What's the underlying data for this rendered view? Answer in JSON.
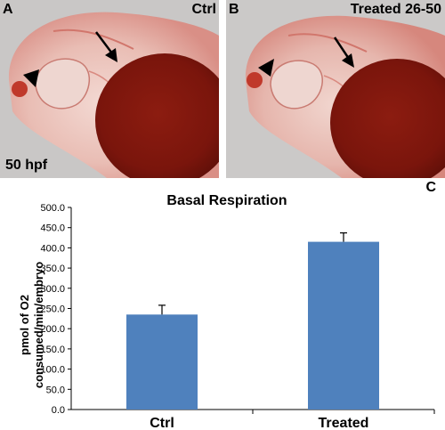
{
  "panels": [
    {
      "letter": "A",
      "condition": "Ctrl",
      "stage": "50 hpf"
    },
    {
      "letter": "B",
      "condition": "Treated 26-50"
    }
  ],
  "chart_letter": "C",
  "chart_data": {
    "type": "bar",
    "title": "Basal Respiration",
    "ylabel_lines": [
      "pmol of O2",
      "consumed/min/embryo"
    ],
    "categories": [
      "Ctrl",
      "Treated"
    ],
    "values": [
      235,
      415
    ],
    "errors": [
      23,
      22
    ],
    "ylim": [
      0,
      500
    ],
    "yticks": [
      "0.0",
      "50.0",
      "100.0",
      "150.0",
      "200.0",
      "250.0",
      "300.0",
      "350.0",
      "400.0",
      "450.0",
      "500.0"
    ],
    "bar_color": "#4f81bd",
    "grid": false,
    "legend": false
  }
}
